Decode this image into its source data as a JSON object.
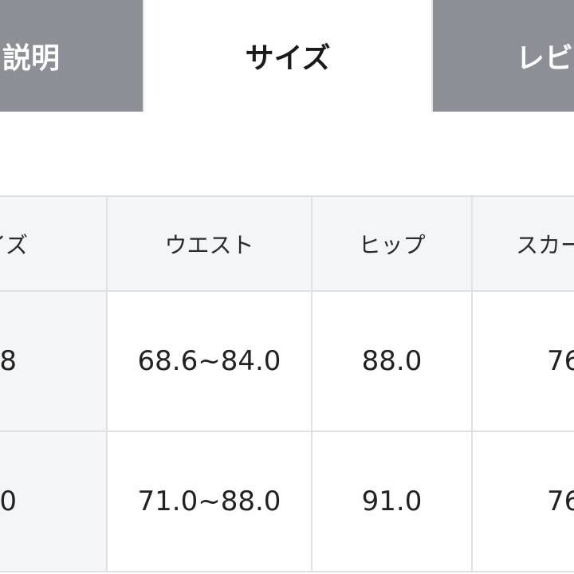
{
  "tabs": [
    {
      "label": "説明",
      "active": false
    },
    {
      "label": "サイズ",
      "active": true
    },
    {
      "label": "レビ",
      "active": false
    }
  ],
  "colors": {
    "inactive_tab": "#8c8f96",
    "header_bg": "#f4f5f6",
    "border": "#dfe1e4"
  },
  "table": {
    "headers": [
      "イズ",
      "ウエスト",
      "ヒップ",
      "スカー"
    ],
    "rows": [
      [
        "8",
        "68.6~84.0",
        "88.0",
        "76"
      ],
      [
        "0",
        "71.0~88.0",
        "91.0",
        "76"
      ]
    ]
  }
}
